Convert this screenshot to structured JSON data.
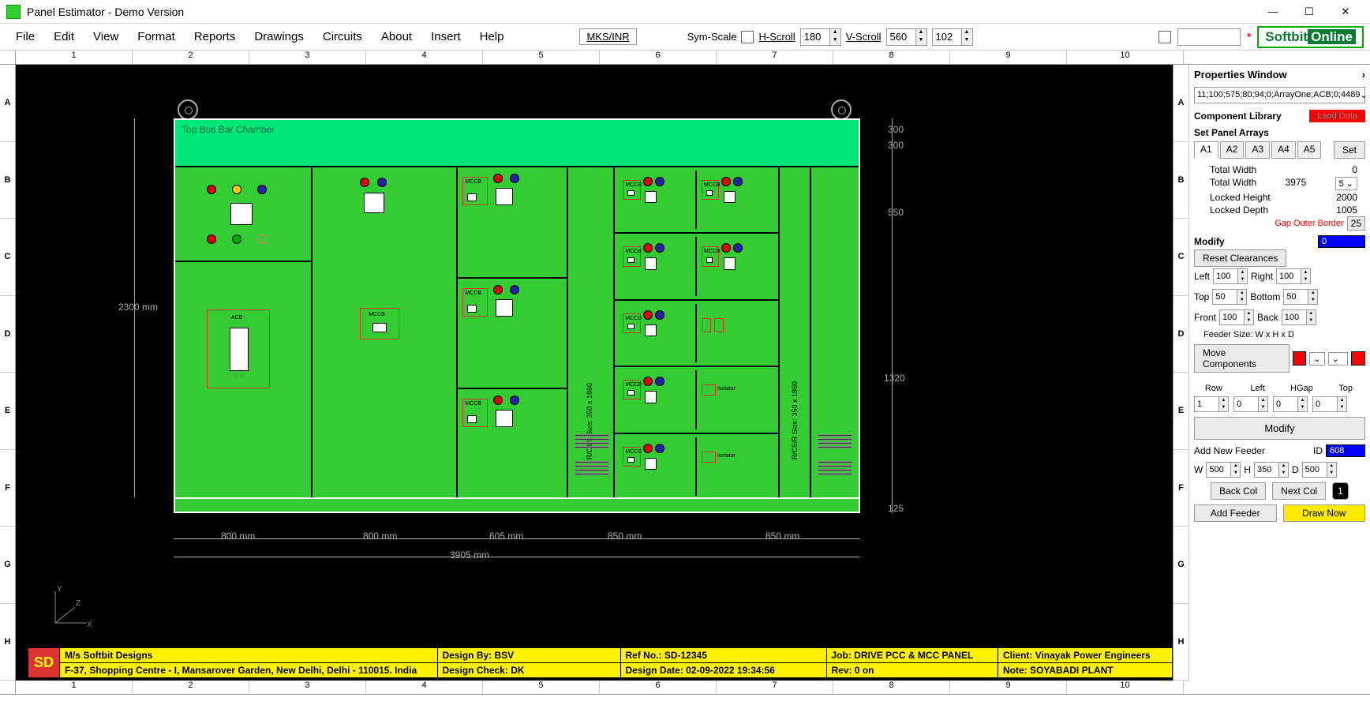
{
  "window": {
    "title": "Panel Estimator - Demo Version"
  },
  "menu": {
    "items": [
      "File",
      "Edit",
      "View",
      "Format",
      "Reports",
      "Drawings",
      "Circuits",
      "About",
      "Insert",
      "Help"
    ],
    "units_link": "MKS/INR",
    "sym_scale": "Sym-Scale",
    "hscroll_label": "H-Scroll",
    "hscroll_val": "180",
    "vscroll_label": "V-Scroll",
    "vscroll_val": "560",
    "extra_val": "102"
  },
  "brand": {
    "a": "Softbit",
    "b": "Online"
  },
  "ruler_h": [
    "1",
    "2",
    "3",
    "4",
    "5",
    "6",
    "7",
    "8",
    "9",
    "10"
  ],
  "ruler_v": [
    "A",
    "B",
    "C",
    "D",
    "E",
    "F",
    "G",
    "H"
  ],
  "panel": {
    "bus_label": "Top Bus Bar Chamber",
    "acb_label": "ACB",
    "mccb_label": "MCCB",
    "isolator_label": "Isolator",
    "col4_label": "R/C4/L  Size: 350 x 1860",
    "col6_label": "R/C5/R  Size: 350 x 1860",
    "height_label": "2300 mm",
    "widths": [
      "800 mm",
      "800 mm",
      "605 mm",
      "850 mm",
      "850 mm"
    ],
    "total_width": "3905 mm",
    "side_dims": [
      "300",
      "300",
      "550",
      "1320",
      "125"
    ],
    "colors": {
      "busbar": "#00e878",
      "col": "#33cc33",
      "red": "#d00000",
      "blue": "#2222aa",
      "yellow": "#ffcc00",
      "green": "#00aa00"
    }
  },
  "footer": {
    "company": "M/s Softbit Designs",
    "address": "F-37, Shopping Centre  - I, Mansarover Garden, New Delhi, Delhi - 110015. India",
    "design_by": "Design By: BSV",
    "design_check": "Design Check: DK",
    "ref": "Ref No.: SD-12345",
    "design_date": "Design Date: 02-09-2022 19:34:56",
    "job": "Job: DRIVE PCC & MCC PANEL",
    "rev": "Rev: 0 on",
    "client": "Client: Vinayak Power Engineers",
    "note": "Note: SOYABADI PLANT",
    "sd": "SD"
  },
  "props": {
    "title": "Properties Window",
    "dd_value": "11;100;575;80;94;0;ArrayOne;ACB;0;4489",
    "comp_lib": "Component Library",
    "load_btn": "Laod Data",
    "set_arrays": "Set Panel Arrays",
    "tabs": [
      "A1",
      "A2",
      "A3",
      "A4",
      "A5"
    ],
    "set_btn": "Set",
    "tw1_lbl": "Total Width",
    "tw1_val": "0",
    "tw2_lbl": "Total Width",
    "tw2_val": "3975",
    "dd5": "5",
    "lh_lbl": "Locked Height",
    "lh_val": "2000",
    "ld_lbl": "Locked Depth",
    "ld_val": "1005",
    "gap_lbl": "Gap Outer Border",
    "gap_val": "25",
    "modify_lbl": "Modify",
    "modify_val": "0",
    "reset_btn": "Reset Clearances",
    "left_lbl": "Left",
    "left_val": "100",
    "right_lbl": "Right",
    "right_val": "100",
    "top_lbl": "Top",
    "top_val": "50",
    "bot_lbl": "Bottom",
    "bot_val": "50",
    "front_lbl": "Front",
    "front_val": "100",
    "back_lbl": "Back",
    "back_val": "100",
    "feeder_size": "Feeder Size: W x H x D",
    "move_comp": "Move Components",
    "row_lbl": "Row",
    "row_val": "1",
    "left2_lbl": "Left",
    "left2_val": "0",
    "hgap_lbl": "HGap",
    "hgap_val": "0",
    "top2_lbl": "Top",
    "top2_val": "0",
    "modify_btn": "Modify",
    "add_feeder_lbl": "Add New Feeder",
    "id_lbl": "ID",
    "id_val": "608",
    "w_lbl": "W",
    "w_val": "500",
    "h_lbl": "H",
    "h_val": "350",
    "d_lbl": "D",
    "d_val": "500",
    "back_col": "Back Col",
    "next_col": "Next Col",
    "one_btn": "1",
    "add_feeder_btn": "Add Feeder",
    "draw_btn": "Draw Now"
  }
}
